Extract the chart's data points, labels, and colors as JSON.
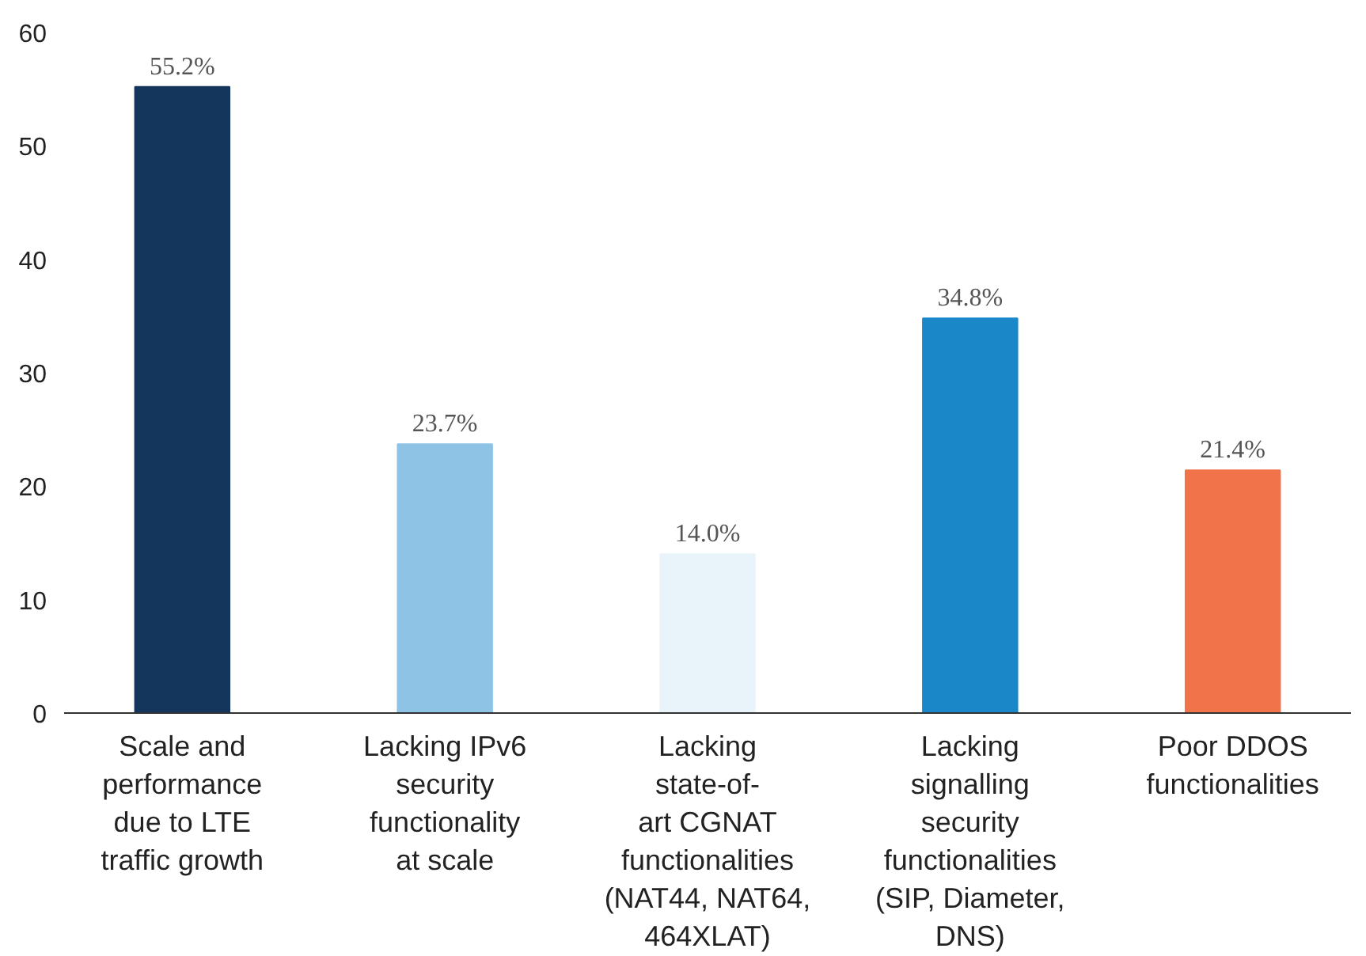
{
  "chart_data": {
    "type": "bar",
    "categories": [
      "Scale and\nperformance\ndue to LTE\ntraffic growth",
      "Lacking IPv6\nsecurity\nfunctionality\nat scale",
      "Lacking\nstate-of-\nart CGNAT\nfunctionalities\n(NAT44, NAT64,\n464XLAT)",
      "Lacking\nsignalling\nsecurity\nfunctionalities\n(SIP, Diameter,\nDNS)",
      "Poor DDOS\nfunctionalities"
    ],
    "values": [
      55.2,
      23.7,
      14.0,
      34.8,
      21.4
    ],
    "colors": [
      "#14355c",
      "#8fc3e6",
      "#e8f3fa",
      "#1a87c9",
      "#f0734a"
    ],
    "value_labels": [
      "55.2%",
      "23.7%",
      "14.0%",
      "34.8%",
      "21.4%"
    ],
    "ylim": [
      0,
      60
    ],
    "yticks": [
      0,
      10,
      20,
      30,
      40,
      50,
      60
    ],
    "grid": false
  }
}
